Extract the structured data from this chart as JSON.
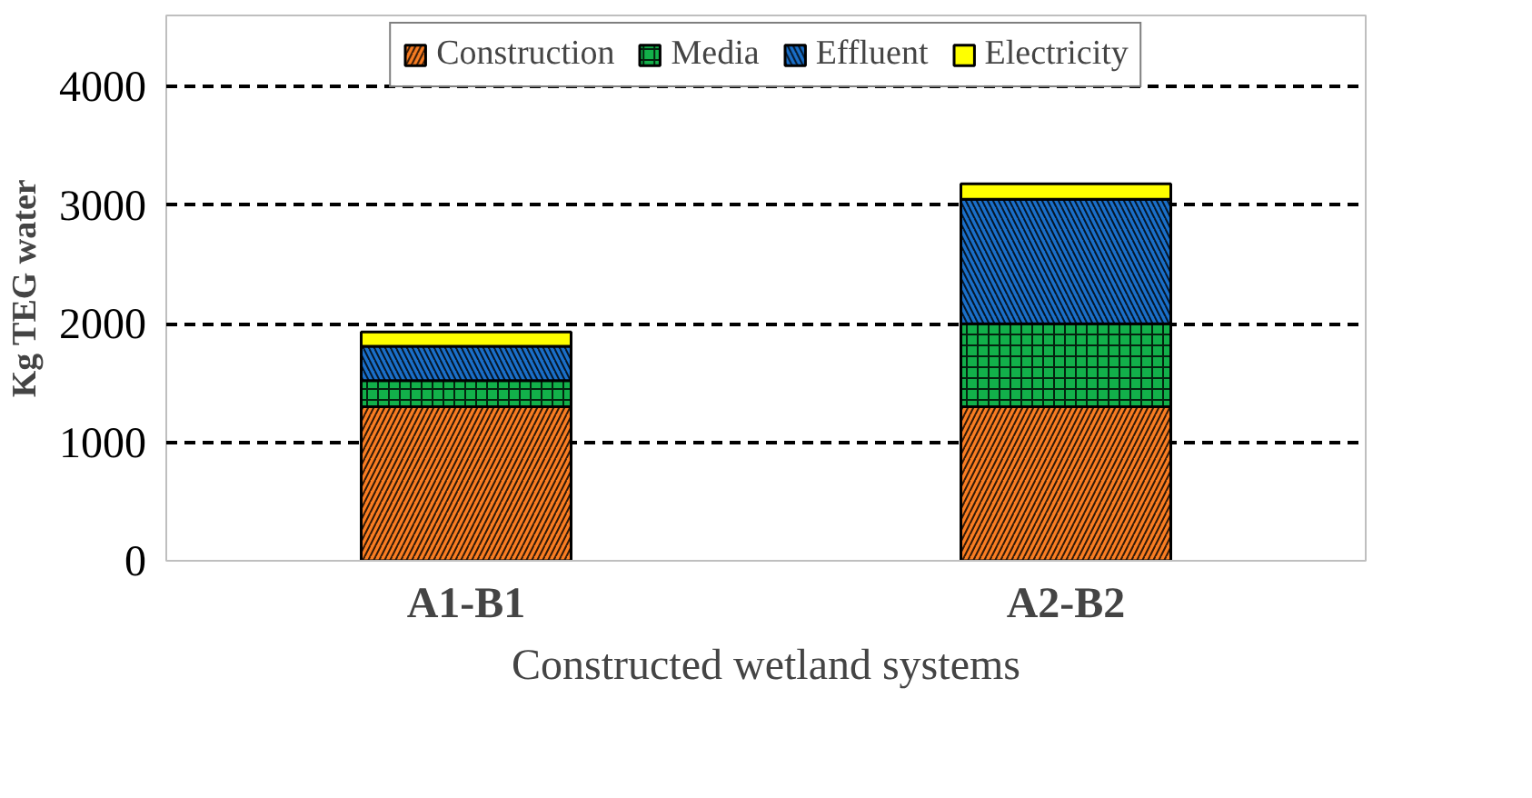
{
  "chart_data": {
    "type": "bar",
    "stacked": true,
    "xlabel": "Constructed wetland systems",
    "ylabel": "Kg TEG water",
    "categories": [
      "A1-B1",
      "A2-B2"
    ],
    "series": [
      {
        "name": "Construction",
        "color": "#f97d22",
        "values": [
          1300,
          1300
        ]
      },
      {
        "name": "Media",
        "color": "#12b04a",
        "values": [
          220,
          700
        ]
      },
      {
        "name": "Effluent",
        "color": "#1a6fc9",
        "values": [
          290,
          1050
        ]
      },
      {
        "name": "Electricity",
        "color": "#ffff00",
        "values": [
          120,
          130
        ]
      }
    ],
    "ylim": [
      0,
      4600
    ],
    "yticks": [
      0,
      1000,
      2000,
      3000,
      4000
    ],
    "grid": "y",
    "legend": "top"
  }
}
